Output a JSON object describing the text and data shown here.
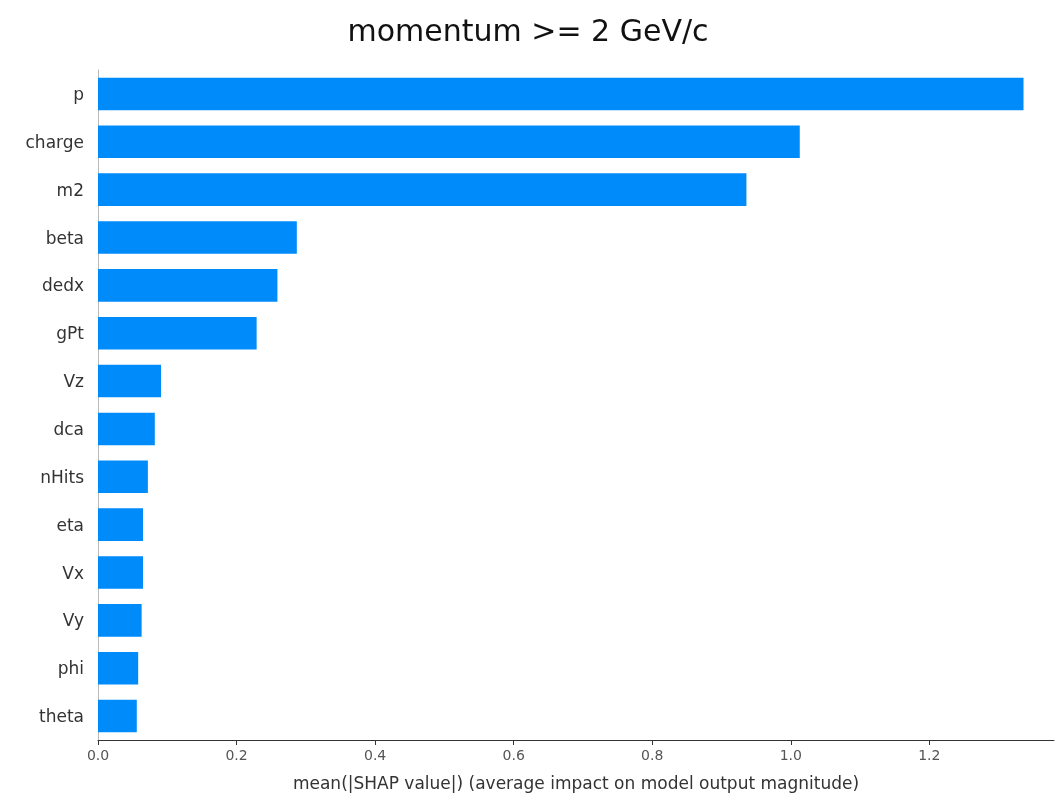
{
  "chart_data": {
    "type": "bar",
    "orientation": "horizontal",
    "title": "momentum >= 2 GeV/c",
    "xlabel": "mean(|SHAP value|) (average impact on model output magnitude)",
    "categories": [
      "p",
      "charge",
      "m2",
      "beta",
      "dedx",
      "gPt",
      "Vz",
      "dca",
      "nHits",
      "eta",
      "Vx",
      "Vy",
      "phi",
      "theta"
    ],
    "values": [
      1.336,
      1.013,
      0.936,
      0.287,
      0.259,
      0.229,
      0.091,
      0.082,
      0.072,
      0.065,
      0.065,
      0.063,
      0.058,
      0.056
    ],
    "color": "#008bfb",
    "xlim": [
      0,
      1.38
    ],
    "xticks": [
      {
        "value": 0,
        "label": "0.0"
      },
      0.2,
      0.4,
      0.6,
      0.8,
      {
        "value": 1,
        "label": "1.0"
      },
      1.2
    ],
    "grid": false
  }
}
